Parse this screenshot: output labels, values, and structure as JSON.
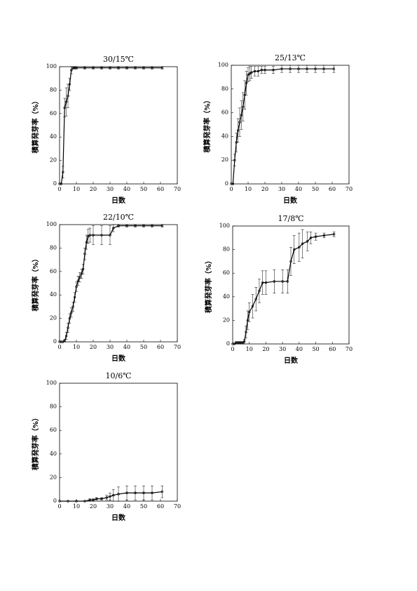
{
  "chart_data": [
    {
      "type": "line",
      "title": "30/15℃",
      "x_label": "日数",
      "y_label": "積算発芽率（%）",
      "xlim": [
        0,
        70
      ],
      "ylim": [
        0,
        100
      ],
      "xticks": [
        0,
        10,
        20,
        30,
        40,
        50,
        60,
        70
      ],
      "yticks": [
        0,
        20,
        40,
        60,
        80,
        100
      ],
      "series": [
        {
          "color": "#000000",
          "x": [
            0,
            1,
            2,
            3,
            4,
            5,
            6,
            7,
            8,
            9,
            10,
            15,
            20,
            25,
            30,
            35,
            40,
            45,
            50,
            55,
            61
          ],
          "values": [
            0,
            0,
            10,
            65,
            70,
            75,
            85,
            97,
            99,
            99,
            99,
            99,
            99,
            99,
            99,
            99,
            99,
            99,
            99,
            99,
            99
          ],
          "errors": [
            0,
            0,
            5,
            8,
            12,
            10,
            5,
            3,
            1,
            1,
            1,
            1,
            1,
            1,
            1,
            1,
            1,
            1,
            1,
            1,
            1
          ]
        }
      ]
    },
    {
      "type": "line",
      "title": "25/13℃",
      "x_label": "日数",
      "y_label": "積算発芽率（%）",
      "xlim": [
        0,
        70
      ],
      "ylim": [
        0,
        100
      ],
      "xticks": [
        0,
        10,
        20,
        30,
        40,
        50,
        60,
        70
      ],
      "yticks": [
        0,
        20,
        40,
        60,
        80,
        100
      ],
      "series": [
        {
          "color": "#000000",
          "x": [
            0,
            1,
            2,
            3,
            4,
            5,
            6,
            7,
            8,
            9,
            10,
            11,
            12,
            14,
            16,
            18,
            20,
            25,
            30,
            35,
            40,
            45,
            50,
            55,
            61
          ],
          "values": [
            0,
            0,
            20,
            35,
            45,
            52,
            58,
            65,
            75,
            85,
            92,
            93,
            94,
            95,
            95,
            96,
            96,
            96,
            97,
            97,
            97,
            97,
            97,
            97,
            97
          ],
          "errors": [
            0,
            0,
            5,
            8,
            10,
            12,
            12,
            12,
            12,
            10,
            6,
            6,
            5,
            4,
            4,
            3,
            3,
            3,
            3,
            3,
            3,
            3,
            3,
            3,
            3
          ]
        }
      ]
    },
    {
      "type": "line",
      "title": "22/10℃",
      "x_label": "日数",
      "y_label": "積算発芽率（%）",
      "xlim": [
        0,
        70
      ],
      "ylim": [
        0,
        100
      ],
      "xticks": [
        0,
        10,
        20,
        30,
        40,
        50,
        60,
        70
      ],
      "yticks": [
        0,
        20,
        40,
        60,
        80,
        100
      ],
      "series": [
        {
          "color": "#000000",
          "x": [
            0,
            1,
            2,
            3,
            4,
            5,
            6,
            7,
            8,
            9,
            10,
            11,
            12,
            13,
            14,
            15,
            16,
            17,
            18,
            20,
            25,
            30,
            32,
            35,
            40,
            45,
            50,
            55,
            61
          ],
          "values": [
            0,
            0,
            0,
            1,
            5,
            12,
            20,
            25,
            30,
            38,
            47,
            52,
            55,
            58,
            62,
            75,
            85,
            90,
            91,
            91,
            91,
            91,
            97,
            99,
            99,
            99,
            99,
            99,
            99
          ],
          "errors": [
            0,
            0,
            0,
            1,
            3,
            4,
            4,
            4,
            4,
            4,
            4,
            4,
            4,
            4,
            4,
            5,
            6,
            6,
            6,
            8,
            8,
            8,
            3,
            1,
            1,
            1,
            1,
            1,
            1
          ]
        }
      ]
    },
    {
      "type": "line",
      "title": "17/8℃",
      "x_label": "日数",
      "y_label": "積算発芽率（%）",
      "xlim": [
        0,
        70
      ],
      "ylim": [
        0,
        100
      ],
      "xticks": [
        0,
        10,
        20,
        30,
        40,
        50,
        60,
        70
      ],
      "yticks": [
        0,
        20,
        40,
        60,
        80,
        100
      ],
      "series": [
        {
          "color": "#000000",
          "x": [
            0,
            1,
            2,
            3,
            4,
            5,
            6,
            7,
            8,
            9,
            10,
            12,
            14,
            16,
            18,
            20,
            25,
            30,
            33,
            35,
            37,
            40,
            42,
            45,
            47,
            50,
            55,
            61
          ],
          "values": [
            0,
            0,
            1,
            1,
            1,
            1,
            1,
            2,
            10,
            20,
            27,
            32,
            38,
            45,
            52,
            52,
            53,
            53,
            53,
            70,
            80,
            82,
            85,
            87,
            90,
            91,
            92,
            93
          ],
          "errors": [
            0,
            0,
            1,
            1,
            1,
            1,
            1,
            2,
            5,
            8,
            8,
            10,
            10,
            10,
            10,
            10,
            10,
            10,
            10,
            12,
            12,
            12,
            12,
            8,
            5,
            3,
            2,
            2
          ]
        }
      ]
    },
    {
      "type": "line",
      "title": "10/6℃",
      "x_label": "日数",
      "y_label": "積算発芽率（%）",
      "xlim": [
        0,
        70
      ],
      "ylim": [
        0,
        100
      ],
      "xticks": [
        0,
        10,
        20,
        30,
        40,
        50,
        60,
        70
      ],
      "yticks": [
        0,
        20,
        40,
        60,
        80,
        100
      ],
      "series": [
        {
          "color": "#000000",
          "x": [
            0,
            5,
            10,
            15,
            18,
            20,
            22,
            25,
            28,
            30,
            32,
            35,
            40,
            45,
            50,
            55,
            61
          ],
          "values": [
            0,
            0,
            0,
            0,
            1,
            1,
            2,
            2,
            3,
            4,
            5,
            6,
            7,
            7,
            7,
            7,
            8
          ],
          "errors": [
            0,
            0,
            0,
            0,
            1,
            1,
            1,
            1,
            2,
            3,
            5,
            6,
            6,
            6,
            6,
            6,
            5
          ]
        }
      ]
    }
  ]
}
